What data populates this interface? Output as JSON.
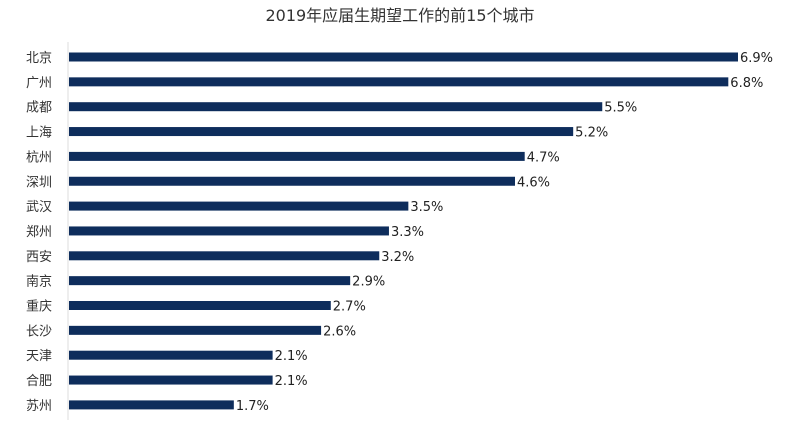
{
  "chart_data": {
    "type": "bar",
    "orientation": "horizontal",
    "title": "2019年应届生期望工作的前15个城市",
    "categories": [
      "北京",
      "广州",
      "成都",
      "上海",
      "杭州",
      "深圳",
      "武汉",
      "郑州",
      "西安",
      "南京",
      "重庆",
      "长沙",
      "天津",
      "合肥",
      "苏州"
    ],
    "values": [
      6.9,
      6.8,
      5.5,
      5.2,
      4.7,
      4.6,
      3.5,
      3.3,
      3.2,
      2.9,
      2.7,
      2.6,
      2.1,
      2.1,
      1.7
    ],
    "value_labels": [
      "6.9%",
      "6.8%",
      "5.5%",
      "5.2%",
      "4.7%",
      "4.6%",
      "3.5%",
      "3.3%",
      "3.2%",
      "2.9%",
      "2.7%",
      "2.6%",
      "2.1%",
      "2.1%",
      "1.7%"
    ],
    "xlabel": "",
    "ylabel": "",
    "xlim": [
      0,
      6.9
    ],
    "grid": false,
    "bar_color": "#0e2d5c"
  }
}
